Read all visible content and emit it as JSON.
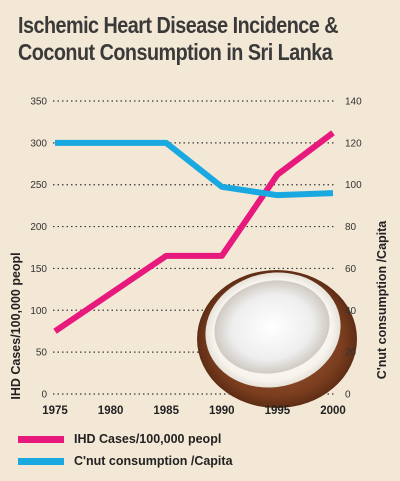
{
  "title_line1": "Ischemic Heart Disease Incidence &",
  "title_line2": "Coconut Consumption in Sri Lanka",
  "colors": {
    "ihd": "#e8197d",
    "coconut": "#1aa8e0",
    "background": "#f3e8d6",
    "grid": "#3a3a3a"
  },
  "chart_data": {
    "type": "line",
    "x": [
      1975,
      1980,
      1985,
      1990,
      1995,
      2000
    ],
    "x_tick_labels": [
      "1975",
      "1980",
      "1985",
      "1990",
      "1995",
      "2000"
    ],
    "ylabel_left": "IHD Cases/100,000 peopl",
    "ylabel_right": "C'nut consumption /Capita",
    "ylim_left": [
      0,
      350
    ],
    "ylim_right": [
      0,
      140
    ],
    "y_ticks_left": [
      "0",
      "50",
      "100",
      "150",
      "200",
      "250",
      "300",
      "350"
    ],
    "y_ticks_right": [
      "0",
      "20",
      "40",
      "60",
      "80",
      "100",
      "120",
      "140"
    ],
    "grid": true,
    "legend_position": "bottom-left",
    "series": [
      {
        "name": "IHD Cases/100,000 peopl",
        "axis": "left",
        "color": "#e8197d",
        "x": [
          1975,
          1985,
          1990,
          1995,
          2000
        ],
        "values": [
          75,
          165,
          165,
          262,
          312
        ]
      },
      {
        "name": "C'nut consumption /Capita",
        "axis": "right",
        "color": "#1aa8e0",
        "x": [
          1975,
          1985,
          1990,
          1995,
          2000
        ],
        "values": [
          120,
          120,
          99,
          95,
          96
        ]
      }
    ]
  }
}
